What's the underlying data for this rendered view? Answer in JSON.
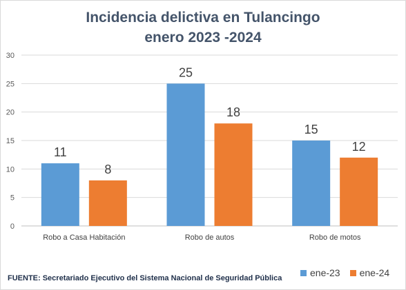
{
  "chart_data": {
    "type": "bar",
    "title_lines": [
      "Incidencia delictiva  en Tulancingo",
      "enero 2023 -2024"
    ],
    "categories": [
      "Robo a Casa Habitación",
      "Robo de autos",
      "Robo de motos"
    ],
    "series": [
      {
        "name": "ene-23",
        "values": [
          11,
          25,
          15
        ],
        "color": "#5b9bd5"
      },
      {
        "name": "ene-24",
        "values": [
          8,
          18,
          12
        ],
        "color": "#ed7d31"
      }
    ],
    "ylim": [
      0,
      30
    ],
    "yticks": [
      "0",
      "5",
      "10",
      "15",
      "20",
      "25",
      "30"
    ],
    "grid": true,
    "legend_position": "bottom-right",
    "source": "FUENTE: Secretariado  Ejecutivo del Sistema Nacional  de Seguridad Pública"
  }
}
